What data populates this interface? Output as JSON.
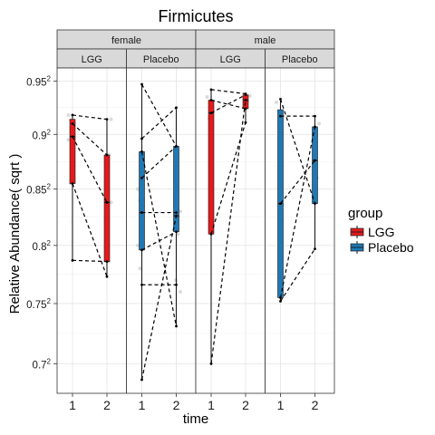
{
  "chart_data": {
    "type": "box",
    "title": "Firmicutes",
    "xlabel": "time",
    "ylabel": "Relative Abundance( sqrt )",
    "y_scale": "sqrt",
    "y_range": [
      0.676,
      0.9626
    ],
    "y_ticks": [
      {
        "value": 0.7,
        "label": "0.7",
        "sup": "2"
      },
      {
        "value": 0.75,
        "label": "0.75",
        "sup": "2"
      },
      {
        "value": 0.8,
        "label": "0.8",
        "sup": "2"
      },
      {
        "value": 0.85,
        "label": "0.85",
        "sup": "2"
      },
      {
        "value": 0.9,
        "label": "0.9",
        "sup": "2"
      },
      {
        "value": 0.95,
        "label": "0.95",
        "sup": "2"
      }
    ],
    "x_categories": [
      "1",
      "2"
    ],
    "facet_rows": [
      "female",
      "male"
    ],
    "facet_cols": [
      "LGG",
      "Placebo"
    ],
    "legend": {
      "title": "group",
      "position": "right"
    },
    "series": [
      {
        "name": "LGG",
        "color": "#e31a1c"
      },
      {
        "name": "Placebo",
        "color": "#1f78b4"
      }
    ],
    "panels": [
      {
        "sex": "female",
        "group": "LGG",
        "boxes": [
          {
            "time": "1",
            "min": 0.787,
            "q1": 0.855,
            "median": 0.898,
            "q3": 0.914,
            "max": 0.918
          },
          {
            "time": "2",
            "min": 0.773,
            "q1": 0.786,
            "median": 0.838,
            "q3": 0.881,
            "max": 0.914
          }
        ],
        "pairs": [
          [
            0.918,
            0.914
          ],
          [
            0.91,
            0.881
          ],
          [
            0.787,
            0.786
          ],
          [
            0.855,
            0.773
          ],
          [
            0.898,
            0.838
          ]
        ],
        "points": [
          [
            0.918,
            0.914
          ],
          [
            0.913,
            0.881
          ],
          [
            0.905,
            0.86
          ],
          [
            0.895,
            0.838
          ],
          [
            0.855,
            0.786
          ]
        ]
      },
      {
        "sex": "female",
        "group": "Placebo",
        "boxes": [
          {
            "time": "1",
            "min": 0.687,
            "q1": 0.796,
            "median": 0.829,
            "q3": 0.884,
            "max": 0.947
          },
          {
            "time": "2",
            "min": 0.731,
            "q1": 0.812,
            "median": 0.826,
            "q3": 0.889,
            "max": 0.925
          }
        ],
        "pairs": [
          [
            0.947,
            0.889
          ],
          [
            0.896,
            0.925
          ],
          [
            0.884,
            0.731
          ],
          [
            0.829,
            0.829
          ],
          [
            0.86,
            0.889
          ],
          [
            0.796,
            0.812
          ],
          [
            0.766,
            0.766
          ],
          [
            0.687,
            0.826
          ]
        ],
        "points": [
          [
            0.85,
            0.83
          ],
          [
            0.84,
            0.81
          ],
          [
            0.82,
            0.77
          ],
          [
            0.8,
            0.76
          ],
          [
            0.78,
            0.825
          ]
        ]
      },
      {
        "sex": "male",
        "group": "LGG",
        "boxes": [
          {
            "time": "1",
            "min": 0.7,
            "q1": 0.81,
            "median": 0.92,
            "q3": 0.932,
            "max": 0.942
          },
          {
            "time": "2",
            "min": 0.911,
            "q1": 0.924,
            "median": 0.932,
            "q3": 0.937,
            "max": 0.938
          }
        ],
        "pairs": [
          [
            0.942,
            0.938
          ],
          [
            0.932,
            0.924
          ],
          [
            0.92,
            0.937
          ],
          [
            0.81,
            0.911
          ],
          [
            0.7,
            0.932
          ]
        ],
        "points": [
          [
            0.935,
            0.936
          ],
          [
            0.915,
            0.931
          ]
        ]
      },
      {
        "sex": "male",
        "group": "Placebo",
        "boxes": [
          {
            "time": "1",
            "min": 0.752,
            "q1": 0.755,
            "median": 0.837,
            "q3": 0.923,
            "max": 0.933
          },
          {
            "time": "2",
            "min": 0.797,
            "q1": 0.837,
            "median": 0.876,
            "q3": 0.907,
            "max": 0.917
          }
        ],
        "pairs": [
          [
            0.917,
            0.917
          ],
          [
            0.933,
            0.837
          ],
          [
            0.755,
            0.907
          ],
          [
            0.752,
            0.797
          ],
          [
            0.837,
            0.876
          ]
        ],
        "points": [
          [
            0.93,
            0.91
          ],
          [
            0.85,
            0.86
          ],
          [
            0.78,
            0.84
          ]
        ]
      }
    ]
  }
}
